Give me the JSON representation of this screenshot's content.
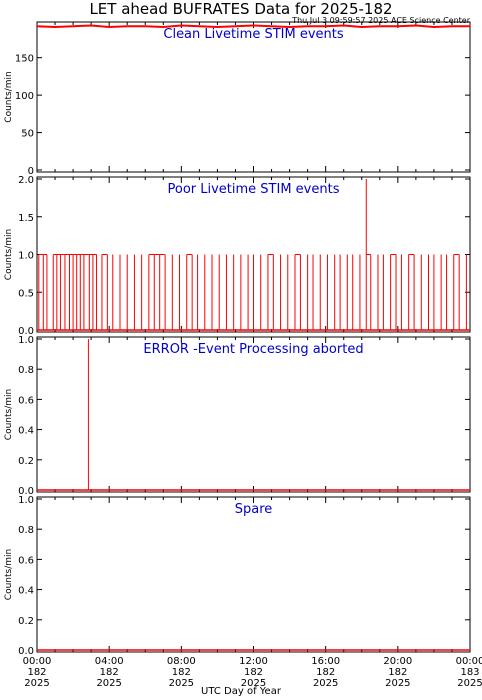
{
  "title": "LET ahead BUFRATES Data for 2025-182",
  "timestamp": "Thu Jul  3 09:59:57 2025 ACE Science Center",
  "xlabel": "UTC Day of Year",
  "colors": {
    "data": "#ff0000",
    "panel_title": "#0000cc",
    "axis": "#000000"
  },
  "x_ticks": [
    {
      "time": "00:00",
      "doy": "182",
      "year": "2025"
    },
    {
      "time": "04:00",
      "doy": "182",
      "year": "2025"
    },
    {
      "time": "08:00",
      "doy": "182",
      "year": "2025"
    },
    {
      "time": "12:00",
      "doy": "182",
      "year": "2025"
    },
    {
      "time": "16:00",
      "doy": "182",
      "year": "2025"
    },
    {
      "time": "20:00",
      "doy": "182",
      "year": "2025"
    },
    {
      "time": "00:00",
      "doy": "183",
      "year": "2025"
    }
  ],
  "chart_data": [
    {
      "type": "line",
      "title": "Clean Livetime STIM events",
      "ylabel": "Counts/min",
      "ylim": [
        0,
        195
      ],
      "yticks": [
        0,
        50,
        100,
        150
      ],
      "xlim_hours": [
        0,
        24
      ],
      "series": [
        {
          "points": [
            [
              0,
              192
            ],
            [
              1,
              191
            ],
            [
              2,
              192
            ],
            [
              3,
              193
            ],
            [
              4,
              191
            ],
            [
              5,
              192
            ],
            [
              6,
              192
            ],
            [
              7,
              191
            ],
            [
              8,
              193
            ],
            [
              9,
              192
            ],
            [
              10,
              191
            ],
            [
              11,
              192
            ],
            [
              12,
              193
            ],
            [
              13,
              192
            ],
            [
              14,
              191
            ],
            [
              15,
              192
            ],
            [
              16,
              192
            ],
            [
              17,
              193
            ],
            [
              18,
              191
            ],
            [
              19,
              192
            ],
            [
              20,
              192
            ],
            [
              21,
              193
            ],
            [
              22,
              191
            ],
            [
              23,
              192
            ],
            [
              24,
              192
            ]
          ]
        }
      ]
    },
    {
      "type": "line",
      "title": "Poor Livetime STIM events",
      "ylabel": "Counts/min",
      "ylim": [
        0,
        2
      ],
      "yticks": [
        0.0,
        0.5,
        1.0,
        1.5,
        2.0
      ],
      "xlim_hours": [
        0,
        24
      ],
      "series": [
        {
          "points": [
            [
              0.1,
              1
            ],
            [
              0.35,
              1
            ],
            [
              0.55,
              1
            ],
            [
              0.9,
              1
            ],
            [
              1.1,
              1
            ],
            [
              1.3,
              1
            ],
            [
              1.55,
              1
            ],
            [
              1.8,
              1
            ],
            [
              2.0,
              1
            ],
            [
              2.2,
              1
            ],
            [
              2.4,
              1
            ],
            [
              2.6,
              1
            ],
            [
              2.9,
              1
            ],
            [
              3.1,
              1
            ],
            [
              3.3,
              1
            ],
            [
              3.6,
              1
            ],
            [
              3.9,
              1
            ],
            [
              4.2,
              1
            ],
            [
              4.6,
              1
            ],
            [
              5.0,
              1
            ],
            [
              5.4,
              1
            ],
            [
              5.8,
              1
            ],
            [
              6.2,
              1
            ],
            [
              6.5,
              1
            ],
            [
              6.8,
              1
            ],
            [
              7.1,
              1
            ],
            [
              7.5,
              1
            ],
            [
              7.9,
              1
            ],
            [
              8.3,
              1
            ],
            [
              8.6,
              1
            ],
            [
              8.9,
              1
            ],
            [
              9.3,
              1
            ],
            [
              9.7,
              1
            ],
            [
              10.1,
              1
            ],
            [
              10.5,
              1
            ],
            [
              10.9,
              1
            ],
            [
              11.3,
              1
            ],
            [
              11.7,
              1
            ],
            [
              12.0,
              1
            ],
            [
              12.4,
              1
            ],
            [
              12.8,
              1
            ],
            [
              13.1,
              1
            ],
            [
              13.5,
              1
            ],
            [
              13.9,
              1
            ],
            [
              14.3,
              1
            ],
            [
              14.6,
              1
            ],
            [
              15.0,
              1
            ],
            [
              15.3,
              1
            ],
            [
              15.7,
              1
            ],
            [
              16.1,
              1
            ],
            [
              16.5,
              1
            ],
            [
              16.8,
              1
            ],
            [
              17.2,
              1
            ],
            [
              17.5,
              1
            ],
            [
              17.9,
              1
            ],
            [
              18.25,
              2
            ],
            [
              18.5,
              1
            ],
            [
              18.9,
              1
            ],
            [
              19.2,
              1
            ],
            [
              19.6,
              1
            ],
            [
              19.9,
              1
            ],
            [
              20.2,
              1
            ],
            [
              20.6,
              1
            ],
            [
              20.9,
              1
            ],
            [
              21.3,
              1
            ],
            [
              21.7,
              1
            ],
            [
              22.0,
              1
            ],
            [
              22.4,
              1
            ],
            [
              22.7,
              1
            ],
            [
              23.1,
              1
            ],
            [
              23.4,
              1
            ],
            [
              23.8,
              1
            ]
          ]
        }
      ]
    },
    {
      "type": "line",
      "title": "ERROR -Event Processing aborted",
      "ylabel": "Counts/min",
      "ylim": [
        0,
        1
      ],
      "yticks": [
        0.0,
        0.2,
        0.4,
        0.6,
        0.8,
        1.0
      ],
      "xlim_hours": [
        0,
        24
      ],
      "series": [
        {
          "points": [
            [
              2.85,
              1
            ]
          ]
        }
      ]
    },
    {
      "type": "line",
      "title": "Spare",
      "ylabel": "Counts/min",
      "ylim": [
        0,
        1
      ],
      "yticks": [
        0.0,
        0.2,
        0.4,
        0.6,
        0.8,
        1.0
      ],
      "xlim_hours": [
        0,
        24
      ],
      "series": [
        {
          "points": []
        }
      ]
    }
  ]
}
